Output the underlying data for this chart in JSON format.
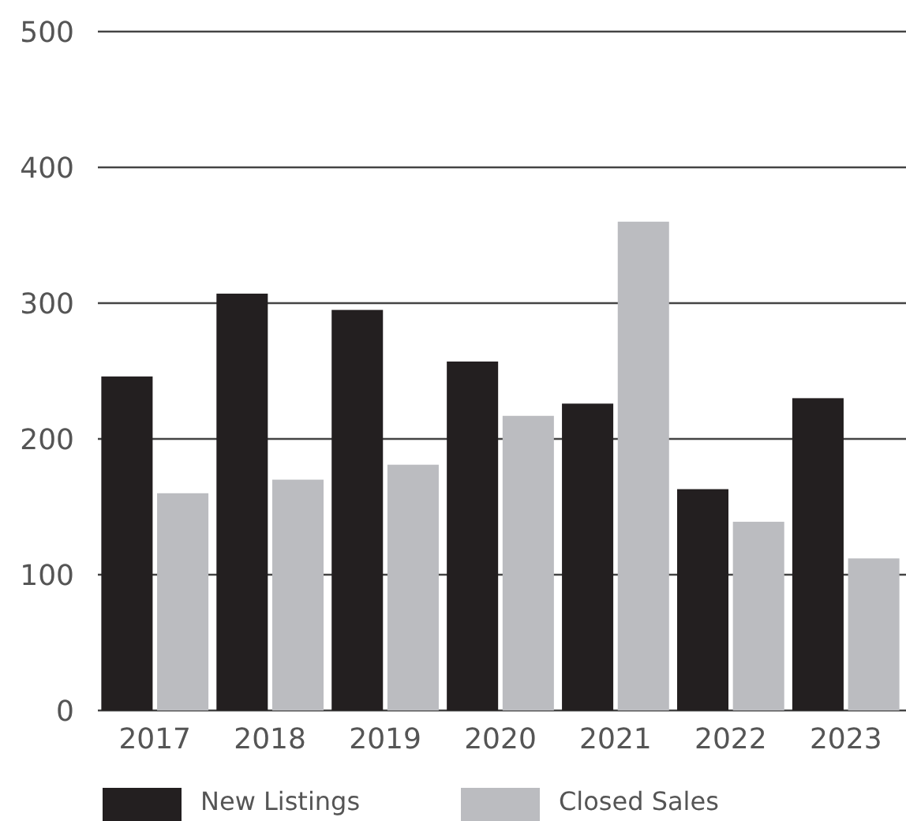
{
  "chart_data": {
    "type": "bar",
    "categories": [
      "2017",
      "2018",
      "2019",
      "2020",
      "2021",
      "2022",
      "2023"
    ],
    "series": [
      {
        "name": "New Listings",
        "color": "#231f20",
        "values": [
          246,
          307,
          295,
          257,
          226,
          163,
          230
        ]
      },
      {
        "name": "Closed Sales",
        "color": "#bbbcc0",
        "values": [
          160,
          170,
          181,
          217,
          360,
          139,
          112
        ]
      }
    ],
    "ylim": [
      0,
      500
    ],
    "yticks": [
      0,
      100,
      200,
      300,
      400,
      500
    ],
    "grid": "y",
    "legend": "bottom"
  }
}
